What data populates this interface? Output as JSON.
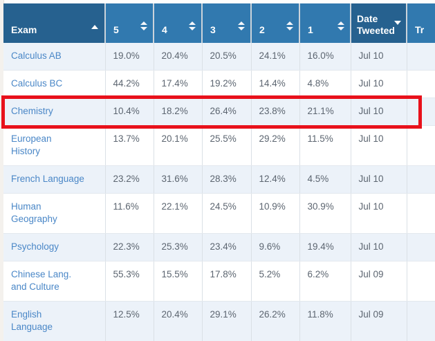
{
  "table": {
    "columns": [
      {
        "label": "Exam",
        "sort": "asc"
      },
      {
        "label": "5",
        "sort": "both"
      },
      {
        "label": "4",
        "sort": "both"
      },
      {
        "label": "3",
        "sort": "both"
      },
      {
        "label": "2",
        "sort": "both"
      },
      {
        "label": "1",
        "sort": "both"
      },
      {
        "label": "Date\nTweeted",
        "sort": "desc"
      },
      {
        "label": "Tr",
        "sort": "none"
      }
    ],
    "rows": [
      {
        "exam": "Calculus AB",
        "five": "19.0%",
        "four": "20.4%",
        "three": "20.5%",
        "two": "24.1%",
        "one": "16.0%",
        "date": "Jul 10",
        "tr": ""
      },
      {
        "exam": "Calculus BC",
        "five": "44.2%",
        "four": "17.4%",
        "three": "19.2%",
        "two": "14.4%",
        "one": "4.8%",
        "date": "Jul 10",
        "tr": ""
      },
      {
        "exam": "Chemistry",
        "five": "10.4%",
        "four": "18.2%",
        "three": "26.4%",
        "two": "23.8%",
        "one": "21.1%",
        "date": "Jul 10",
        "tr": ""
      },
      {
        "exam": "European\nHistory",
        "five": "13.7%",
        "four": "20.1%",
        "three": "25.5%",
        "two": "29.2%",
        "one": "11.5%",
        "date": "Jul 10",
        "tr": ""
      },
      {
        "exam": "French Language",
        "five": "23.2%",
        "four": "31.6%",
        "three": "28.3%",
        "two": "12.4%",
        "one": "4.5%",
        "date": "Jul 10",
        "tr": ""
      },
      {
        "exam": "Human\nGeography",
        "five": "11.6%",
        "four": "22.1%",
        "three": "24.5%",
        "two": "10.9%",
        "one": "30.9%",
        "date": "Jul 10",
        "tr": ""
      },
      {
        "exam": "Psychology",
        "five": "22.3%",
        "four": "25.3%",
        "three": "23.4%",
        "two": "9.6%",
        "one": "19.4%",
        "date": "Jul 10",
        "tr": ""
      },
      {
        "exam": "Chinese Lang.\nand Culture",
        "five": "55.3%",
        "four": "15.5%",
        "three": "17.8%",
        "two": "5.2%",
        "one": "6.2%",
        "date": "Jul 09",
        "tr": ""
      },
      {
        "exam": "English\nLanguage",
        "five": "12.5%",
        "four": "20.4%",
        "three": "29.1%",
        "two": "26.2%",
        "one": "11.8%",
        "date": "Jul 09",
        "tr": ""
      }
    ]
  },
  "highlight": {
    "highlighted_exam": "Chemistry",
    "color": "#e8111b"
  },
  "colors": {
    "header_dark": "#26618f",
    "header_light": "#3179af",
    "row_stripe": "#ecf2f9",
    "link": "#4a87c7",
    "cell_text": "#5c6570"
  }
}
